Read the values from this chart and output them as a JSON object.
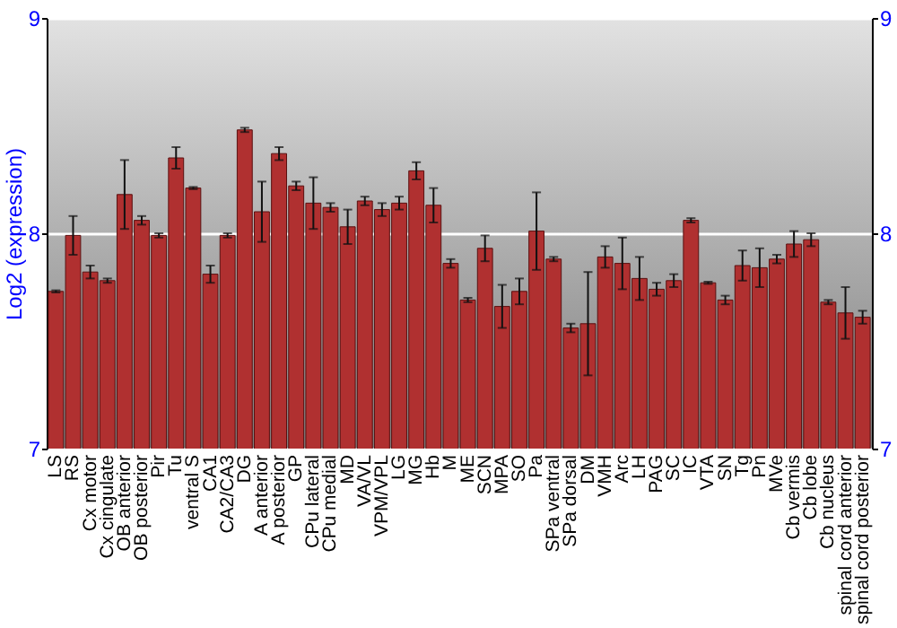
{
  "chart_data": {
    "type": "bar",
    "ylabel": "Log2 (expression)",
    "categories": [
      "LS",
      "RS",
      "Cx motor",
      "Cx cingulate",
      "OB anterior",
      "OB posterior",
      "Pir",
      "Tu",
      "ventral S",
      "CA1",
      "CA2/CA3",
      "DG",
      "A anterior",
      "A posterior",
      "GP",
      "CPu lateral",
      "CPu medial",
      "MD",
      "VA/VL",
      "VPM/VPL",
      "LG",
      "MG",
      "Hb",
      "M",
      "ME",
      "SCN",
      "MPA",
      "SO",
      "Pa",
      "SPa ventral",
      "SPa dorsal",
      "DM",
      "VMH",
      "Arc",
      "LH",
      "PAG",
      "SC",
      "IC",
      "VTA",
      "SN",
      "Tg",
      "Pn",
      "MVe",
      "Cb vermis",
      "Cb lobe",
      "Cb nucleus",
      "spinal cord anterior",
      "spinal cord posterior"
    ],
    "values": [
      7.73,
      7.99,
      7.82,
      7.78,
      8.18,
      8.06,
      7.99,
      8.35,
      8.21,
      7.81,
      7.99,
      8.48,
      8.1,
      8.37,
      8.22,
      8.14,
      8.12,
      8.03,
      8.15,
      8.11,
      8.14,
      8.29,
      8.13,
      7.86,
      7.69,
      7.93,
      7.66,
      7.73,
      8.01,
      7.88,
      7.56,
      7.58,
      7.89,
      7.86,
      7.79,
      7.74,
      7.78,
      8.06,
      7.77,
      7.69,
      7.85,
      7.84,
      7.88,
      7.95,
      7.97,
      7.68,
      7.63,
      7.61
    ],
    "errors": [
      0.005,
      0.09,
      0.03,
      0.01,
      0.16,
      0.02,
      0.01,
      0.05,
      0.005,
      0.04,
      0.01,
      0.01,
      0.14,
      0.03,
      0.02,
      0.12,
      0.02,
      0.08,
      0.02,
      0.03,
      0.03,
      0.04,
      0.08,
      0.02,
      0.01,
      0.06,
      0.1,
      0.06,
      0.18,
      0.01,
      0.02,
      0.24,
      0.05,
      0.12,
      0.1,
      0.03,
      0.03,
      0.01,
      0.005,
      0.02,
      0.07,
      0.09,
      0.02,
      0.06,
      0.03,
      0.01,
      0.12,
      0.03
    ],
    "color": "#b03030",
    "ylim": [
      7,
      9
    ],
    "yticks": [
      7,
      8,
      9
    ],
    "y2lim": [
      7,
      9
    ],
    "y2ticks": [
      7,
      8,
      9
    ],
    "grid": "y"
  }
}
